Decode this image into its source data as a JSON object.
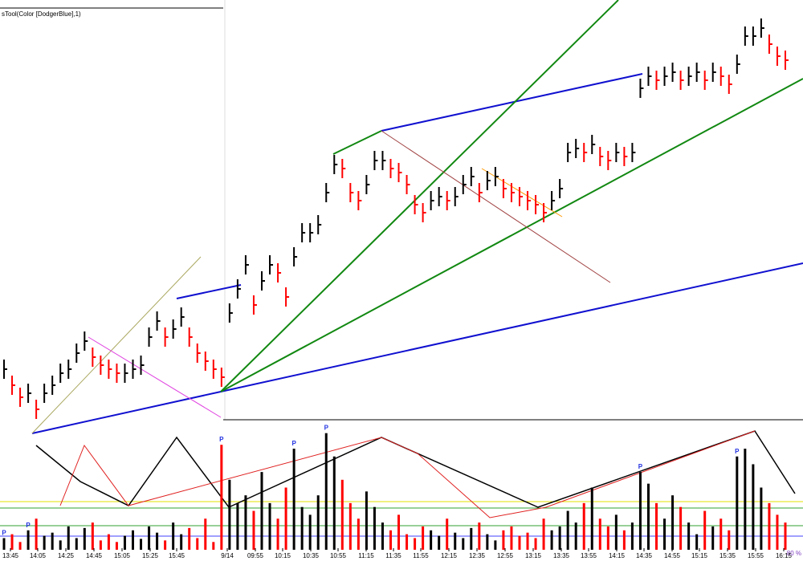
{
  "chart_data": {
    "type": "ohlc",
    "indicator_label": "sTool(Color [DodgerBlue],1)",
    "zoom_label": "80 %",
    "pivot_label": "P",
    "pivots": [
      0,
      3,
      27,
      36,
      40,
      79,
      91
    ],
    "up_color": "#000000",
    "down_color": "#ff0000",
    "ylim": [
      0,
      540
    ],
    "vol_lim": [
      0,
      160
    ],
    "x_labels": [
      "13:45",
      "14:05",
      "14:25",
      "14:45",
      "15:05",
      "15:25",
      "15:45",
      "9/14",
      "09:55",
      "10:15",
      "10:35",
      "10:55",
      "11:15",
      "11:35",
      "11:55",
      "12:15",
      "12:35",
      "12:55",
      "13:15",
      "13:35",
      "13:55",
      "14:15",
      "14:35",
      "14:55",
      "15:15",
      "15:35",
      "15:55",
      "16:15"
    ],
    "close": [
      80,
      60,
      45,
      50,
      30,
      50,
      60,
      75,
      80,
      100,
      115,
      95,
      85,
      80,
      75,
      75,
      80,
      85,
      120,
      140,
      120,
      130,
      145,
      120,
      100,
      90,
      80,
      70,
      150,
      180,
      210,
      160,
      190,
      210,
      200,
      170,
      220,
      250,
      250,
      260,
      300,
      335,
      330,
      300,
      290,
      310,
      340,
      340,
      330,
      325,
      310,
      285,
      275,
      290,
      295,
      290,
      295,
      310,
      320,
      300,
      315,
      320,
      305,
      300,
      295,
      290,
      285,
      275,
      290,
      305,
      350,
      355,
      350,
      360,
      345,
      340,
      350,
      345,
      350,
      430,
      445,
      440,
      445,
      450,
      440,
      445,
      450,
      440,
      450,
      445,
      435,
      460,
      495,
      495,
      505,
      485,
      470,
      465
    ],
    "high": [
      92,
      72,
      57,
      62,
      42,
      62,
      72,
      87,
      92,
      112,
      127,
      107,
      97,
      92,
      87,
      87,
      92,
      97,
      132,
      152,
      132,
      142,
      157,
      132,
      112,
      102,
      92,
      82,
      162,
      192,
      222,
      172,
      202,
      222,
      212,
      182,
      232,
      262,
      262,
      272,
      312,
      347,
      342,
      312,
      302,
      322,
      352,
      352,
      342,
      337,
      322,
      297,
      287,
      302,
      307,
      302,
      307,
      322,
      332,
      312,
      327,
      332,
      317,
      312,
      307,
      302,
      297,
      287,
      302,
      317,
      362,
      367,
      362,
      372,
      357,
      352,
      362,
      357,
      362,
      442,
      457,
      452,
      457,
      462,
      452,
      457,
      462,
      452,
      462,
      457,
      447,
      472,
      507,
      507,
      517,
      497,
      482,
      477
    ],
    "low": [
      68,
      48,
      33,
      38,
      18,
      38,
      48,
      63,
      68,
      88,
      103,
      83,
      73,
      68,
      63,
      63,
      68,
      73,
      108,
      128,
      108,
      118,
      133,
      108,
      88,
      78,
      68,
      58,
      138,
      168,
      198,
      148,
      178,
      198,
      188,
      158,
      208,
      238,
      238,
      248,
      288,
      323,
      318,
      288,
      278,
      298,
      328,
      328,
      318,
      313,
      298,
      273,
      263,
      278,
      283,
      278,
      283,
      298,
      308,
      288,
      303,
      308,
      293,
      288,
      283,
      278,
      273,
      263,
      278,
      293,
      338,
      343,
      338,
      348,
      333,
      328,
      338,
      333,
      338,
      418,
      433,
      428,
      433,
      438,
      428,
      433,
      438,
      428,
      438,
      433,
      423,
      448,
      483,
      483,
      493,
      473,
      458,
      453
    ],
    "volume": [
      15,
      20,
      10,
      25,
      40,
      18,
      22,
      12,
      30,
      15,
      28,
      35,
      12,
      20,
      10,
      18,
      25,
      14,
      30,
      22,
      12,
      35,
      20,
      28,
      15,
      40,
      10,
      135,
      90,
      60,
      70,
      50,
      100,
      60,
      40,
      80,
      130,
      55,
      45,
      70,
      150,
      120,
      90,
      60,
      40,
      75,
      55,
      35,
      25,
      45,
      20,
      15,
      30,
      25,
      18,
      40,
      22,
      15,
      28,
      35,
      20,
      12,
      25,
      30,
      18,
      22,
      15,
      40,
      25,
      30,
      50,
      35,
      60,
      80,
      40,
      30,
      45,
      25,
      35,
      100,
      85,
      60,
      40,
      70,
      55,
      35,
      20,
      50,
      30,
      40,
      25,
      120,
      130,
      110,
      80,
      60,
      45,
      35
    ]
  }
}
